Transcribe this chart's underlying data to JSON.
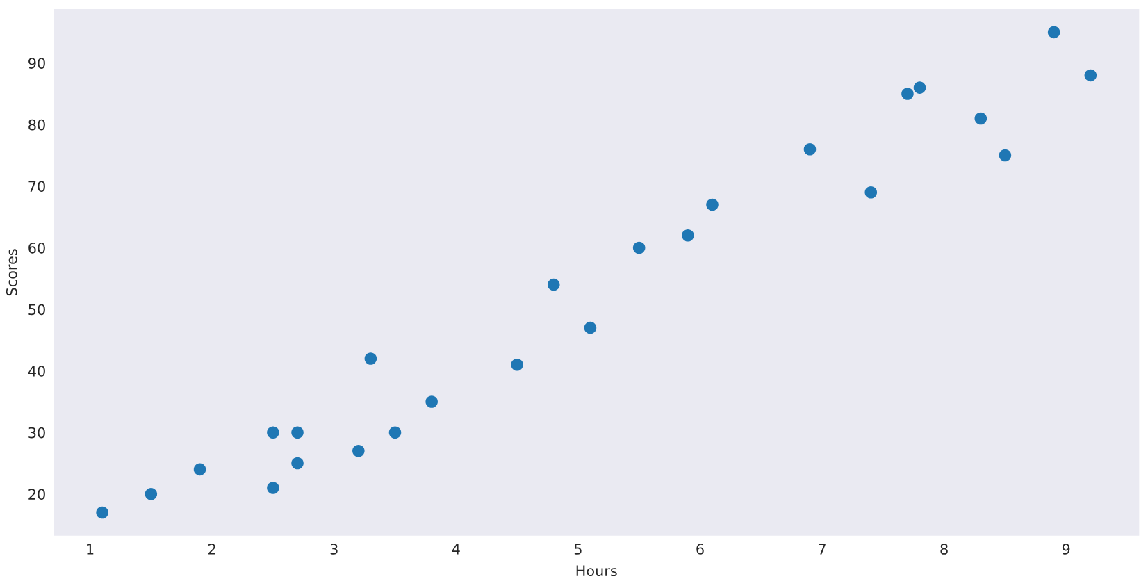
{
  "chart_data": {
    "type": "scatter",
    "xlabel": "Hours",
    "ylabel": "Scores",
    "series": [
      {
        "color": "#1f77b4",
        "x": [
          2.5,
          5.1,
          3.2,
          8.5,
          3.5,
          1.5,
          9.2,
          5.5,
          8.3,
          2.7,
          7.7,
          5.9,
          4.5,
          3.3,
          1.1,
          8.9,
          2.5,
          1.9,
          6.1,
          7.4,
          2.7,
          4.8,
          3.8,
          6.9,
          7.8
        ],
        "values": [
          21,
          47,
          27,
          75,
          30,
          20,
          88,
          60,
          81,
          25,
          85,
          62,
          41,
          42,
          17,
          95,
          30,
          24,
          67,
          69,
          30,
          54,
          35,
          76,
          86
        ]
      }
    ],
    "xlim": [
      0.695,
      9.605
    ],
    "ylim": [
      13.1,
      98.9
    ],
    "xticks": [
      1,
      2,
      3,
      4,
      5,
      6,
      7,
      8,
      9
    ],
    "yticks": [
      20,
      30,
      40,
      50,
      60,
      70,
      80,
      90
    ],
    "grid": false,
    "marker": "circle"
  }
}
